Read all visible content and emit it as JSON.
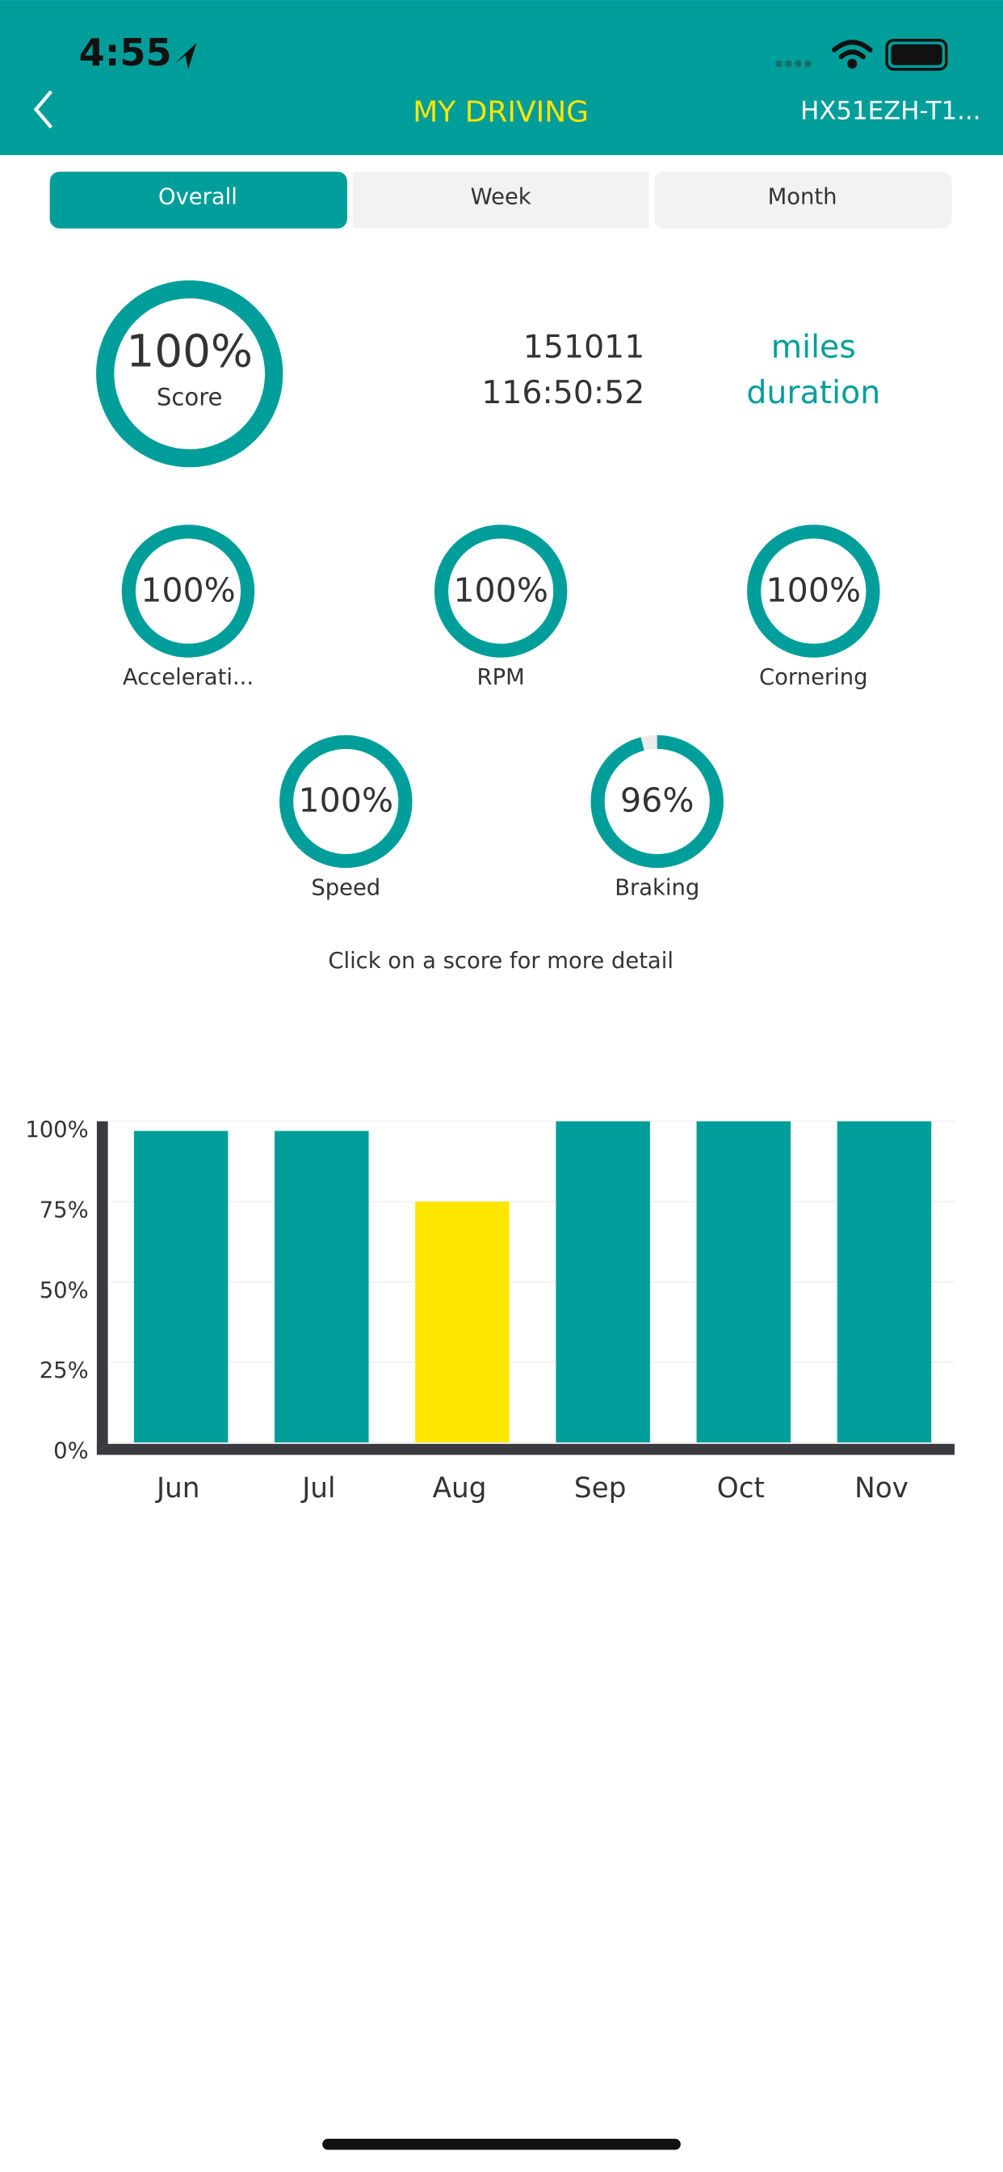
{
  "status_bar": {
    "time": "4:55"
  },
  "header": {
    "title": "MY DRIVING",
    "vehicle": "HX51EZH-T1..."
  },
  "tabs": [
    "Overall",
    "Week",
    "Month"
  ],
  "summary": {
    "score": {
      "value": 100,
      "label": "100%"
    },
    "score_name": "Score",
    "miles": "151011",
    "miles_label": "miles",
    "duration": "116:50:52",
    "duration_label": "duration"
  },
  "gauges": [
    {
      "name": "Accelerati...",
      "score": {
        "value": 100,
        "label": "100%"
      }
    },
    {
      "name": "RPM",
      "score": {
        "value": 100,
        "label": "100%"
      }
    },
    {
      "name": "Cornering",
      "score": {
        "value": 100,
        "label": "100%"
      }
    },
    {
      "name": "Speed",
      "score": {
        "value": 100,
        "label": "100%"
      }
    },
    {
      "name": "Braking",
      "score": {
        "value": 96,
        "label": "96%"
      }
    }
  ],
  "hint": "Click on a score for more detail",
  "chart_data": {
    "type": "bar",
    "categories": [
      "Jun",
      "Jul",
      "Aug",
      "Sep",
      "Oct",
      "Nov"
    ],
    "values": [
      97,
      97,
      75,
      100,
      100,
      100
    ],
    "colors": [
      "#009e9a",
      "#009e9a",
      "#ffe600",
      "#009e9a",
      "#009e9a",
      "#009e9a"
    ],
    "ylim": [
      0,
      100
    ],
    "yticks": [
      {
        "value": 0,
        "label": "0%"
      },
      {
        "value": 25,
        "label": "25%"
      },
      {
        "value": 50,
        "label": "50%"
      },
      {
        "value": 75,
        "label": "75%"
      },
      {
        "value": 100,
        "label": "100%"
      }
    ],
    "grid": true
  }
}
